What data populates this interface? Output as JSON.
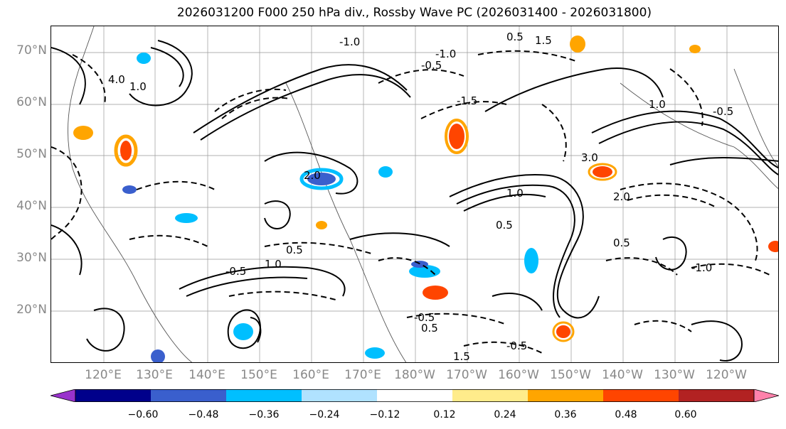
{
  "title": "2026031200 F000 250 hPa div., Rossby Wave PC (2026031400 - 2026031800)",
  "lat_labels": [
    "70°N",
    "60°N",
    "50°N",
    "40°N",
    "30°N",
    "20°N"
  ],
  "lon_labels": [
    "120°E",
    "130°E",
    "140°E",
    "150°E",
    "160°E",
    "170°E",
    "180°W",
    "170°W",
    "160°W",
    "150°W",
    "140°W",
    "130°W",
    "120°W"
  ],
  "contour_labels": [
    "-1.0",
    "-0.5",
    "0.5",
    "1.0",
    "1.5",
    "2.0",
    "3.0",
    "4.0",
    "-1.5",
    "0.5",
    "-0.5",
    "1.0",
    "-1.0",
    "0.5",
    "-0.5",
    "1.5",
    "2.0",
    "1.0",
    "-0.5",
    "0.5",
    "-1.0",
    "0.5",
    "-0.5",
    "1.0"
  ],
  "colorbar": {
    "colors": [
      "#9932cc",
      "#00008b",
      "#3a5fcd",
      "#00bfff",
      "#b0e2ff",
      "#ffffff",
      "#ffec8b",
      "#ffa500",
      "#ff4500",
      "#b22222",
      "#ff82ab"
    ],
    "ticks": [
      "−0.60",
      "−0.48",
      "−0.36",
      "−0.24",
      "−0.12",
      "0.12",
      "0.24",
      "0.36",
      "0.48",
      "0.60"
    ]
  },
  "colors": {
    "grid": "#999999",
    "axis_text": "#888888",
    "contour": "#000000"
  }
}
